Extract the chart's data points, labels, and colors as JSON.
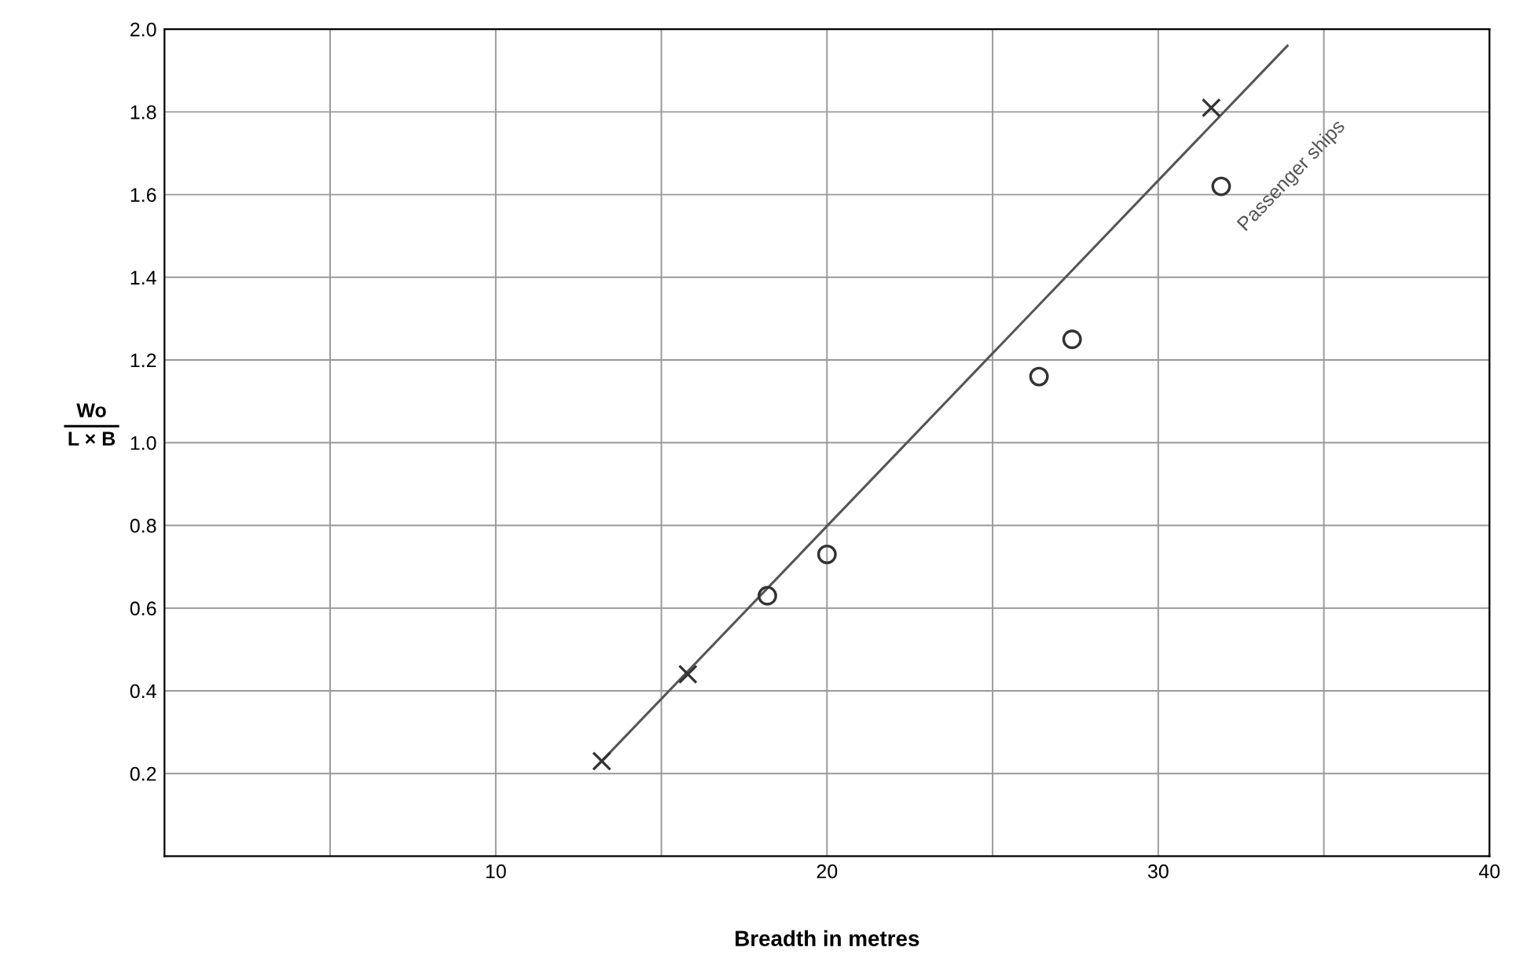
{
  "chart_data": {
    "type": "scatter",
    "xlabel": "Breadth in metres",
    "ylabel": "Wo\nL × B",
    "xlim": [
      0,
      40
    ],
    "ylim": [
      0,
      2.0
    ],
    "xticks": [
      {
        "value": 5,
        "label": null
      },
      10,
      {
        "value": 15,
        "label": null
      },
      20,
      {
        "value": 25,
        "label": null
      },
      30,
      {
        "value": 35,
        "label": null
      },
      40
    ],
    "yticks": [
      0.2,
      0.4,
      0.6,
      0.8,
      {
        "value": 1.0,
        "label": "1.0"
      },
      1.2,
      1.4,
      1.6,
      1.8,
      {
        "value": 2.0,
        "label": "2.0"
      }
    ],
    "grid": true,
    "legend": false,
    "series": [
      {
        "marker": "cross",
        "color": "#333333",
        "x": [
          13.2,
          15.8,
          31.6
        ],
        "values": [
          0.23,
          0.44,
          1.81
        ]
      },
      {
        "marker": "circle",
        "color": "#333333",
        "x": [
          18.2,
          20.0,
          26.4,
          27.4,
          31.9
        ],
        "values": [
          0.63,
          0.73,
          1.16,
          1.25,
          1.62
        ]
      },
      {
        "type": "line",
        "marker": "none",
        "color": "#555555",
        "x": [
          13.2,
          33.9
        ],
        "values": [
          0.23,
          1.96
        ]
      }
    ],
    "annotations": [
      "Passenger ships"
    ]
  }
}
